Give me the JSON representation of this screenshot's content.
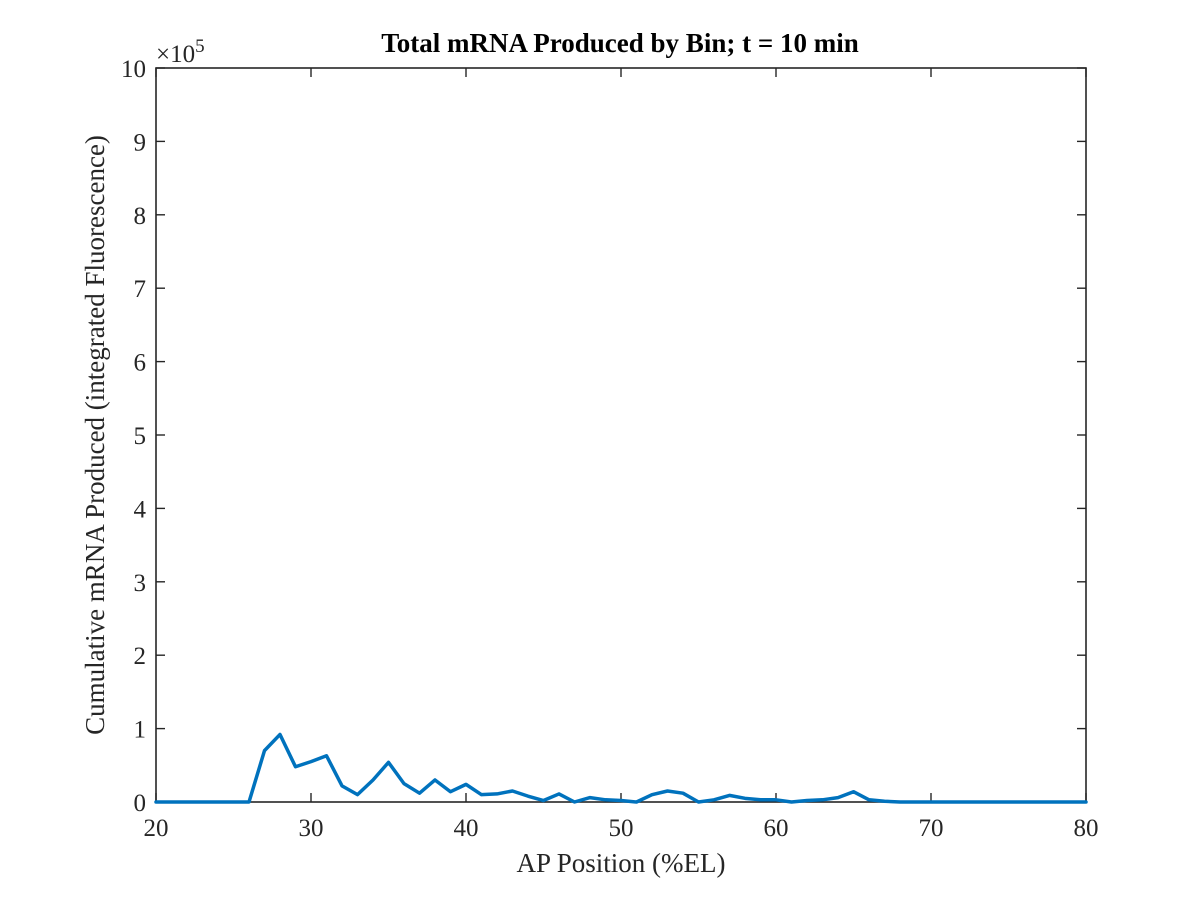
{
  "chart_data": {
    "type": "line",
    "title": "Total mRNA Produced by Bin; t = 10 min",
    "xlabel": "AP Position (%EL)",
    "ylabel": "Cumulative mRNA Produced (integrated Fluorescence)",
    "y_multiplier_base": "×10",
    "y_multiplier_exponent": "5",
    "xlim": [
      20,
      80
    ],
    "ylim": [
      0,
      10
    ],
    "x_ticks": [
      "20",
      "30",
      "40",
      "50",
      "60",
      "70",
      "80"
    ],
    "y_ticks": [
      "0",
      "1",
      "2",
      "3",
      "4",
      "5",
      "6",
      "7",
      "8",
      "9",
      "10"
    ],
    "grid": false,
    "series": [
      {
        "color": "#0072BD",
        "x": [
          20,
          21,
          22,
          23,
          24,
          25,
          26,
          27,
          28,
          29,
          30,
          31,
          32,
          33,
          34,
          35,
          36,
          37,
          38,
          39,
          40,
          41,
          42,
          43,
          44,
          45,
          46,
          47,
          48,
          49,
          50,
          51,
          52,
          53,
          54,
          55,
          56,
          57,
          58,
          59,
          60,
          61,
          62,
          63,
          64,
          65,
          66,
          67,
          68,
          69,
          70,
          71,
          72,
          73,
          74,
          75,
          76,
          77,
          78,
          79,
          80
        ],
        "y": [
          0,
          0,
          0,
          0,
          0,
          0,
          0,
          0.7,
          0.92,
          0.48,
          0.55,
          0.63,
          0.22,
          0.1,
          0.3,
          0.54,
          0.25,
          0.12,
          0.3,
          0.14,
          0.24,
          0.1,
          0.11,
          0.15,
          0.08,
          0.02,
          0.11,
          0.0,
          0.06,
          0.03,
          0.02,
          0.0,
          0.1,
          0.15,
          0.12,
          0.0,
          0.03,
          0.09,
          0.05,
          0.03,
          0.03,
          0.0,
          0.02,
          0.03,
          0.06,
          0.14,
          0.03,
          0.01,
          0,
          0,
          0,
          0,
          0,
          0,
          0,
          0,
          0,
          0,
          0,
          0,
          0
        ]
      }
    ]
  }
}
